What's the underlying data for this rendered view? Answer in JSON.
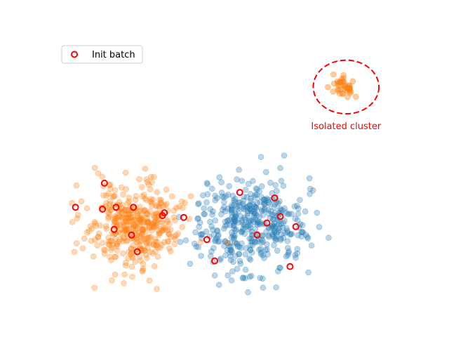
{
  "chart_data": {
    "type": "scatter",
    "title": "",
    "xlabel": "",
    "ylabel": "",
    "axes_visible": false,
    "grid": false,
    "xlim": [
      -4.0,
      14.0
    ],
    "ylim": [
      -4.0,
      10.0
    ],
    "legend": {
      "placement": "top-left",
      "entries": [
        {
          "label": "Init batch",
          "marker": "open-circle",
          "color": "#ff0000"
        }
      ]
    },
    "series": [
      {
        "color": "#1f77b4",
        "alpha": 0.3,
        "center": [
          6.0,
          0.0
        ],
        "std": [
          1.4,
          1.25
        ],
        "count": 420
      },
      {
        "color": "#ff7f0e",
        "alpha": 0.3,
        "center": [
          0.0,
          0.0
        ],
        "std": [
          1.2,
          1.1
        ],
        "count": 400
      },
      {
        "color": "#ff7f0e",
        "alpha": 0.4,
        "center": [
          11.0,
          7.5
        ],
        "std": [
          0.35,
          0.3
        ],
        "count": 40
      }
    ],
    "init_batch": {
      "label": "Init batch",
      "color": "#ff0000",
      "points": [
        [
          -3.0,
          1.0
        ],
        [
          -1.5,
          2.3
        ],
        [
          -1.6,
          0.9
        ],
        [
          -0.9,
          1.0
        ],
        [
          -1.0,
          -0.2
        ],
        [
          0.0,
          1.0
        ],
        [
          -0.1,
          -0.5
        ],
        [
          0.2,
          -1.4
        ],
        [
          1.5,
          0.55
        ],
        [
          1.6,
          0.7
        ],
        [
          2.6,
          0.45
        ],
        [
          3.8,
          -0.75
        ],
        [
          4.2,
          -1.9
        ],
        [
          5.5,
          1.8
        ],
        [
          7.3,
          1.5
        ],
        [
          6.9,
          0.15
        ],
        [
          6.4,
          -0.5
        ],
        [
          7.6,
          0.5
        ],
        [
          8.4,
          -0.05
        ],
        [
          8.1,
          -2.2
        ]
      ]
    },
    "annotations": [
      {
        "text": "Isolated cluster",
        "color": "#ff0000",
        "shape": "dashed-ellipse",
        "center": [
          11.0,
          7.5
        ],
        "radius": [
          1.7,
          1.45
        ]
      }
    ]
  }
}
